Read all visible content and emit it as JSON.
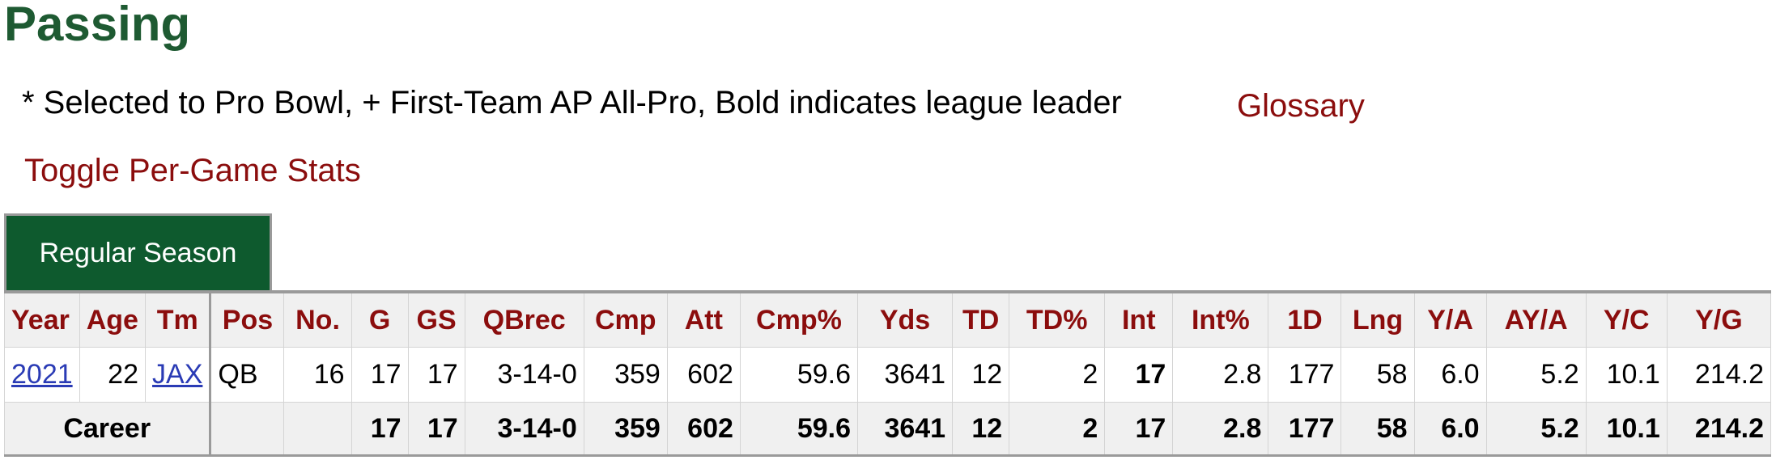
{
  "title": "Passing",
  "legend": "* Selected to Pro Bowl, + First-Team AP All-Pro, Bold indicates league leader",
  "glossary_label": "Glossary",
  "toggle_label": "Toggle Per-Game Stats",
  "tab_label": "Regular Season",
  "headers": [
    "Year",
    "Age",
    "Tm",
    "Pos",
    "No.",
    "G",
    "GS",
    "QBrec",
    "Cmp",
    "Att",
    "Cmp%",
    "Yds",
    "TD",
    "TD%",
    "Int",
    "Int%",
    "1D",
    "Lng",
    "Y/A",
    "AY/A",
    "Y/C",
    "Y/G"
  ],
  "row": {
    "year": "2021",
    "age": "22",
    "tm": "JAX",
    "pos": "QB",
    "no": "16",
    "g": "17",
    "gs": "17",
    "qbrec": "3-14-0",
    "cmp": "359",
    "att": "602",
    "cmp_pct": "59.6",
    "yds": "3641",
    "td": "12",
    "td_pct": "2",
    "int": "17",
    "int_pct": "2.8",
    "first_downs": "177",
    "lng": "58",
    "y_a": "6.0",
    "ay_a": "5.2",
    "y_c": "10.1",
    "y_g": "214.2"
  },
  "career": {
    "label": "Career",
    "g": "17",
    "gs": "17",
    "qbrec": "3-14-0",
    "cmp": "359",
    "att": "602",
    "cmp_pct": "59.6",
    "yds": "3641",
    "td": "12",
    "td_pct": "2",
    "int": "17",
    "int_pct": "2.8",
    "first_downs": "177",
    "lng": "58",
    "y_a": "6.0",
    "ay_a": "5.2",
    "y_c": "10.1",
    "y_g": "214.2"
  },
  "colors": {
    "title": "#1e5a32",
    "link_red": "#8b0d0d",
    "tab_green": "#0e5a2e",
    "link_blue": "#2a3bb5"
  }
}
